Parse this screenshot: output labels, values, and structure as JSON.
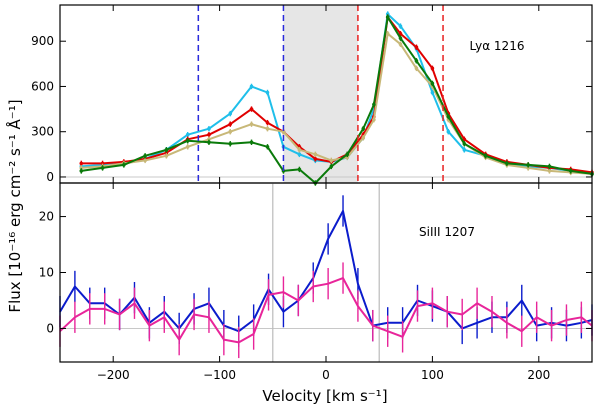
{
  "chart_data": [
    {
      "type": "line",
      "panel": "top",
      "annotation": "Lyα 1216",
      "xlim": [
        -250,
        250
      ],
      "ylim": [
        -40,
        1140
      ],
      "yticks": [
        0,
        300,
        600,
        900
      ],
      "x": [
        -230,
        -210,
        -190,
        -170,
        -150,
        -130,
        -110,
        -90,
        -70,
        -55,
        -40,
        -25,
        -10,
        5,
        20,
        35,
        45,
        58,
        70,
        85,
        100,
        115,
        130,
        150,
        170,
        190,
        210,
        230,
        250
      ],
      "series": [
        {
          "color": "#1fbfea",
          "values": [
            70,
            80,
            90,
            120,
            180,
            280,
            320,
            420,
            600,
            560,
            200,
            150,
            110,
            100,
            130,
            260,
            450,
            1080,
            1000,
            850,
            560,
            300,
            180,
            140,
            90,
            70,
            60,
            40,
            20
          ]
        },
        {
          "color": "#e00000",
          "values": [
            90,
            90,
            100,
            120,
            160,
            250,
            280,
            350,
            450,
            360,
            300,
            200,
            120,
            100,
            150,
            280,
            400,
            1060,
            950,
            860,
            720,
            420,
            250,
            150,
            100,
            80,
            60,
            50,
            30
          ]
        },
        {
          "color": "#c8b878",
          "values": [
            60,
            70,
            90,
            110,
            140,
            200,
            250,
            300,
            350,
            320,
            300,
            180,
            150,
            110,
            130,
            260,
            380,
            950,
            880,
            720,
            600,
            380,
            220,
            130,
            80,
            60,
            40,
            30,
            20
          ]
        },
        {
          "color": "#0a7a0a",
          "values": [
            40,
            60,
            80,
            140,
            180,
            240,
            230,
            220,
            230,
            200,
            40,
            50,
            -40,
            70,
            150,
            320,
            480,
            1060,
            920,
            770,
            620,
            400,
            220,
            140,
            90,
            80,
            70,
            40,
            20
          ]
        }
      ],
      "shaded_region": [
        -40,
        30
      ],
      "vlines_blue": [
        -120,
        -40
      ],
      "vlines_red": [
        30,
        110
      ]
    },
    {
      "type": "line",
      "panel": "bottom",
      "annotation": "SiIII 1207",
      "xlim": [
        -250,
        250
      ],
      "ylim": [
        -6,
        26
      ],
      "yticks": [
        0,
        10,
        20
      ],
      "xticks": [
        -200,
        -100,
        0,
        100,
        200
      ],
      "x": [
        -250,
        -236,
        -222,
        -208,
        -194,
        -180,
        -166,
        -152,
        -138,
        -124,
        -110,
        -96,
        -82,
        -68,
        -54,
        -40,
        -26,
        -12,
        2,
        16,
        30,
        44,
        58,
        72,
        86,
        100,
        114,
        128,
        142,
        156,
        170,
        184,
        198,
        212,
        226,
        240,
        250
      ],
      "series": [
        {
          "color": "#0b1ccc",
          "values": [
            3,
            7.5,
            4.5,
            4.5,
            2.5,
            5.5,
            1,
            3,
            0,
            3.5,
            4.5,
            0.5,
            -0.5,
            1.5,
            7,
            3,
            5,
            9,
            16,
            21,
            8,
            0.5,
            1,
            1,
            5,
            4,
            3,
            0,
            1,
            2,
            2,
            5,
            0.5,
            1,
            0.5,
            1,
            1.5
          ]
        },
        {
          "color": "#e8259a",
          "values": [
            -0.5,
            2,
            3.5,
            3.5,
            2.5,
            4.5,
            0.5,
            2,
            -2,
            2.5,
            2,
            -2,
            -2.5,
            -1,
            6,
            6.5,
            5,
            7.5,
            8,
            9,
            4,
            0.5,
            -0.5,
            -1.5,
            4,
            4.5,
            3,
            2.5,
            4.5,
            3,
            1,
            -0.5,
            2,
            0.5,
            1.5,
            2,
            0.5
          ]
        }
      ],
      "vlines_gray": [
        -50,
        50
      ]
    }
  ],
  "xlabel": "Velocity [km s⁻¹]",
  "ylabel": "Flux [10⁻¹⁶ erg cm⁻² s⁻¹ Å⁻¹]"
}
